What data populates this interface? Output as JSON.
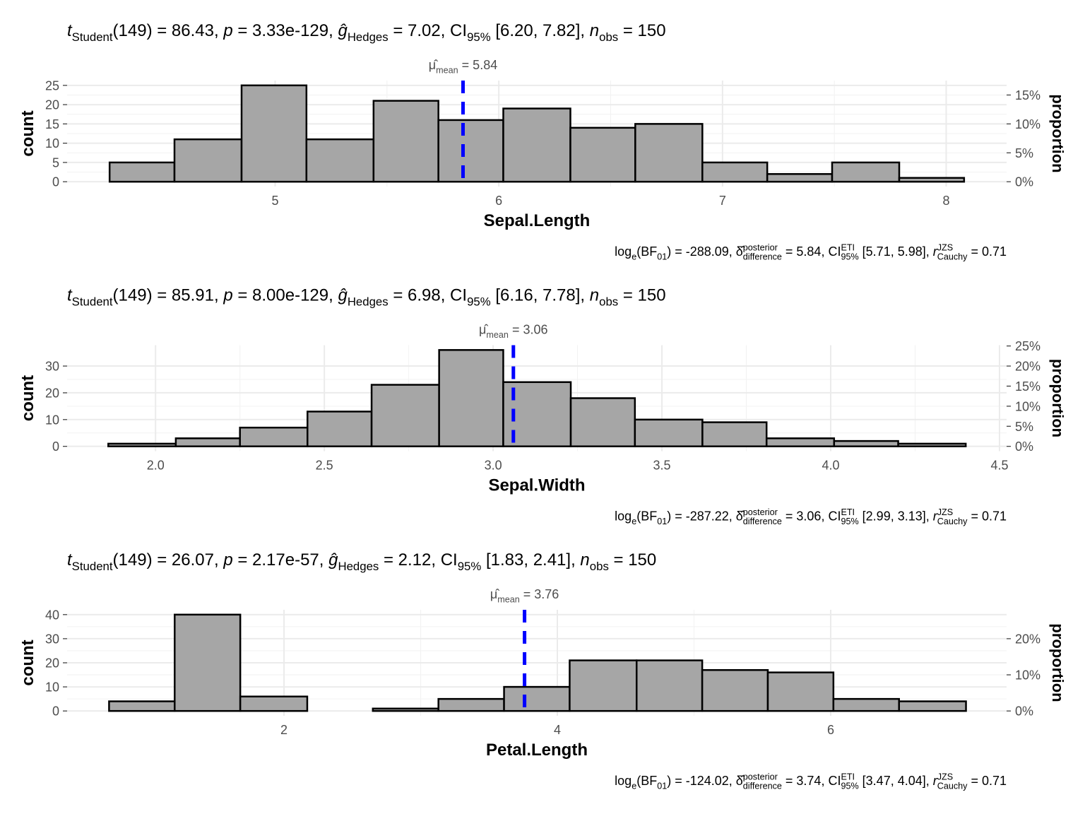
{
  "chart_data": [
    {
      "type": "histogram",
      "title": [
        {
          "text": "t",
          "style": "i"
        },
        {
          "text": "Student",
          "style": "sub"
        },
        {
          "text": "(149) = 86.43, "
        },
        {
          "text": "p",
          "style": "i"
        },
        {
          "text": " = 3.33e-129, "
        },
        {
          "text": "ĝ",
          "style": "i"
        },
        {
          "text": "Hedges",
          "style": "sub"
        },
        {
          "text": " = 7.02, CI"
        },
        {
          "text": "95%",
          "style": "sub"
        },
        {
          "text": " [6.20, 7.82], "
        },
        {
          "text": "n",
          "style": "i"
        },
        {
          "text": "obs",
          "style": "sub"
        },
        {
          "text": " = 150"
        }
      ],
      "caption": [
        {
          "text": "log"
        },
        {
          "text": "e",
          "style": "sub"
        },
        {
          "text": "(BF"
        },
        {
          "text": "01",
          "style": "sub"
        },
        {
          "text": ") = -288.09, δ̂"
        },
        {
          "text": "posterior",
          "style": "sup"
        },
        {
          "text": "difference",
          "style": "sub"
        },
        {
          "text": " = 5.84, CI"
        },
        {
          "text": "ETI",
          "style": "sup"
        },
        {
          "text": "95%",
          "style": "sub"
        },
        {
          "text": " [5.71, 5.98], "
        },
        {
          "text": "r",
          "style": "i"
        },
        {
          "text": "JZS",
          "style": "sup"
        },
        {
          "text": "Cauchy",
          "style": "sub"
        },
        {
          "text": " = 0.71"
        }
      ],
      "x_label": "Sepal.Length",
      "y_label": "count",
      "y2_label": "proportion",
      "bins": [
        4.26,
        4.55,
        4.85,
        5.14,
        5.44,
        5.73,
        6.02,
        6.32,
        6.61,
        6.91,
        7.2,
        7.49,
        7.79,
        8.08
      ],
      "values": [
        5,
        11,
        25,
        11,
        21,
        16,
        19,
        14,
        15,
        5,
        2,
        5,
        1
      ],
      "color": "#a6a6a6",
      "edge_color": "#000000",
      "xlim": [
        4.07,
        8.27
      ],
      "xticks": [
        5,
        6,
        7,
        8
      ],
      "ylim": [
        -1.25,
        26.25
      ],
      "yticks": [
        0,
        5,
        10,
        15,
        20,
        25
      ],
      "y2lim": [
        -0.00833,
        0.175
      ],
      "y2ticks": [
        {
          "value": 0,
          "label": "0%"
        },
        {
          "value": 0.05,
          "label": "5%"
        },
        {
          "value": 0.1,
          "label": "10%"
        },
        {
          "value": 0.15,
          "label": "15%"
        }
      ],
      "mean": {
        "value": 5.84,
        "label": [
          {
            "text": "μ̂"
          },
          {
            "text": "mean",
            "style": "sub"
          },
          {
            "text": " = "
          }
        ],
        "color": "#0000ff"
      },
      "grid": true
    },
    {
      "type": "histogram",
      "title": [
        {
          "text": "t",
          "style": "i"
        },
        {
          "text": "Student",
          "style": "sub"
        },
        {
          "text": "(149) = 85.91, "
        },
        {
          "text": "p",
          "style": "i"
        },
        {
          "text": " = 8.00e-129, "
        },
        {
          "text": "ĝ",
          "style": "i"
        },
        {
          "text": "Hedges",
          "style": "sub"
        },
        {
          "text": " = 6.98, CI"
        },
        {
          "text": "95%",
          "style": "sub"
        },
        {
          "text": " [6.16, 7.78], "
        },
        {
          "text": "n",
          "style": "i"
        },
        {
          "text": "obs",
          "style": "sub"
        },
        {
          "text": " = 150"
        }
      ],
      "caption": [
        {
          "text": "log"
        },
        {
          "text": "e",
          "style": "sub"
        },
        {
          "text": "(BF"
        },
        {
          "text": "01",
          "style": "sub"
        },
        {
          "text": ") = -287.22, δ̂"
        },
        {
          "text": "posterior",
          "style": "sup"
        },
        {
          "text": "difference",
          "style": "sub"
        },
        {
          "text": " = 3.06, CI"
        },
        {
          "text": "ETI",
          "style": "sup"
        },
        {
          "text": "95%",
          "style": "sub"
        },
        {
          "text": " [2.99, 3.13], "
        },
        {
          "text": "r",
          "style": "i"
        },
        {
          "text": "JZS",
          "style": "sup"
        },
        {
          "text": "Cauchy",
          "style": "sub"
        },
        {
          "text": " = 0.71"
        }
      ],
      "x_label": "Sepal.Width",
      "y_label": "count",
      "y2_label": "proportion",
      "bins": [
        1.86,
        2.06,
        2.25,
        2.45,
        2.64,
        2.84,
        3.03,
        3.23,
        3.42,
        3.62,
        3.81,
        4.01,
        4.2,
        4.4
      ],
      "values": [
        1,
        3,
        7,
        13,
        23,
        36,
        24,
        18,
        10,
        9,
        3,
        2,
        1
      ],
      "color": "#a6a6a6",
      "edge_color": "#000000",
      "xlim": [
        1.738,
        4.521
      ],
      "xticks": [
        {
          "value": 2,
          "label": "2.0"
        },
        2.5,
        {
          "value": 3,
          "label": "3.0"
        },
        3.5,
        {
          "value": 4,
          "label": "4.0"
        },
        4.5
      ],
      "ylim": [
        -1.8,
        37.8
      ],
      "yticks": [
        0,
        10,
        20,
        30
      ],
      "y2lim": [
        -0.012,
        0.252
      ],
      "y2ticks": [
        {
          "value": 0,
          "label": "0%"
        },
        {
          "value": 0.05,
          "label": "5%"
        },
        {
          "value": 0.1,
          "label": "10%"
        },
        {
          "value": 0.15,
          "label": "15%"
        },
        {
          "value": 0.2,
          "label": "20%"
        },
        {
          "value": 0.25,
          "label": "25%"
        }
      ],
      "mean": {
        "value": 3.06,
        "label": [
          {
            "text": "μ̂"
          },
          {
            "text": "mean",
            "style": "sub"
          },
          {
            "text": " = "
          }
        ],
        "color": "#0000ff"
      },
      "grid": true
    },
    {
      "type": "histogram",
      "title": [
        {
          "text": "t",
          "style": "i"
        },
        {
          "text": "Student",
          "style": "sub"
        },
        {
          "text": "(149) = 26.07, "
        },
        {
          "text": "p",
          "style": "i"
        },
        {
          "text": " = 2.17e-57, "
        },
        {
          "text": "ĝ",
          "style": "i"
        },
        {
          "text": "Hedges",
          "style": "sub"
        },
        {
          "text": " = 2.12, CI"
        },
        {
          "text": "95%",
          "style": "sub"
        },
        {
          "text": " [1.83, 2.41], "
        },
        {
          "text": "n",
          "style": "i"
        },
        {
          "text": "obs",
          "style": "sub"
        },
        {
          "text": " = 150"
        }
      ],
      "caption": [
        {
          "text": "log"
        },
        {
          "text": "e",
          "style": "sub"
        },
        {
          "text": "(BF"
        },
        {
          "text": "01",
          "style": "sub"
        },
        {
          "text": ") = -124.02, δ̂"
        },
        {
          "text": "posterior",
          "style": "sup"
        },
        {
          "text": "difference",
          "style": "sub"
        },
        {
          "text": " = 3.74, CI"
        },
        {
          "text": "ETI",
          "style": "sup"
        },
        {
          "text": "95%",
          "style": "sub"
        },
        {
          "text": " [3.47, 4.04], "
        },
        {
          "text": "r",
          "style": "i"
        },
        {
          "text": "JZS",
          "style": "sup"
        },
        {
          "text": "Cauchy",
          "style": "sub"
        },
        {
          "text": " = 0.71"
        }
      ],
      "x_label": "Petal.Length",
      "y_label": "count",
      "y2_label": "proportion",
      "bins": [
        0.72,
        1.2,
        1.68,
        2.17,
        2.65,
        3.13,
        3.61,
        4.09,
        4.58,
        5.06,
        5.54,
        6.02,
        6.5,
        6.99
      ],
      "values": [
        4,
        40,
        6,
        0,
        1,
        5,
        10,
        21,
        21,
        17,
        16,
        5,
        4
      ],
      "color": "#a6a6a6",
      "edge_color": "#000000",
      "xlim": [
        0.413,
        7.287
      ],
      "xticks": [
        2,
        4,
        6
      ],
      "ylim": [
        -2,
        42
      ],
      "yticks": [
        0,
        10,
        20,
        30,
        40
      ],
      "y2lim": [
        -0.01333,
        0.28
      ],
      "y2ticks": [
        {
          "value": 0,
          "label": "0%"
        },
        {
          "value": 0.1,
          "label": "10%"
        },
        {
          "value": 0.2,
          "label": "20%"
        }
      ],
      "mean": {
        "value": 3.76,
        "label": [
          {
            "text": "μ̂"
          },
          {
            "text": "mean",
            "style": "sub"
          },
          {
            "text": " = "
          }
        ],
        "color": "#0000ff"
      },
      "grid": true
    }
  ]
}
